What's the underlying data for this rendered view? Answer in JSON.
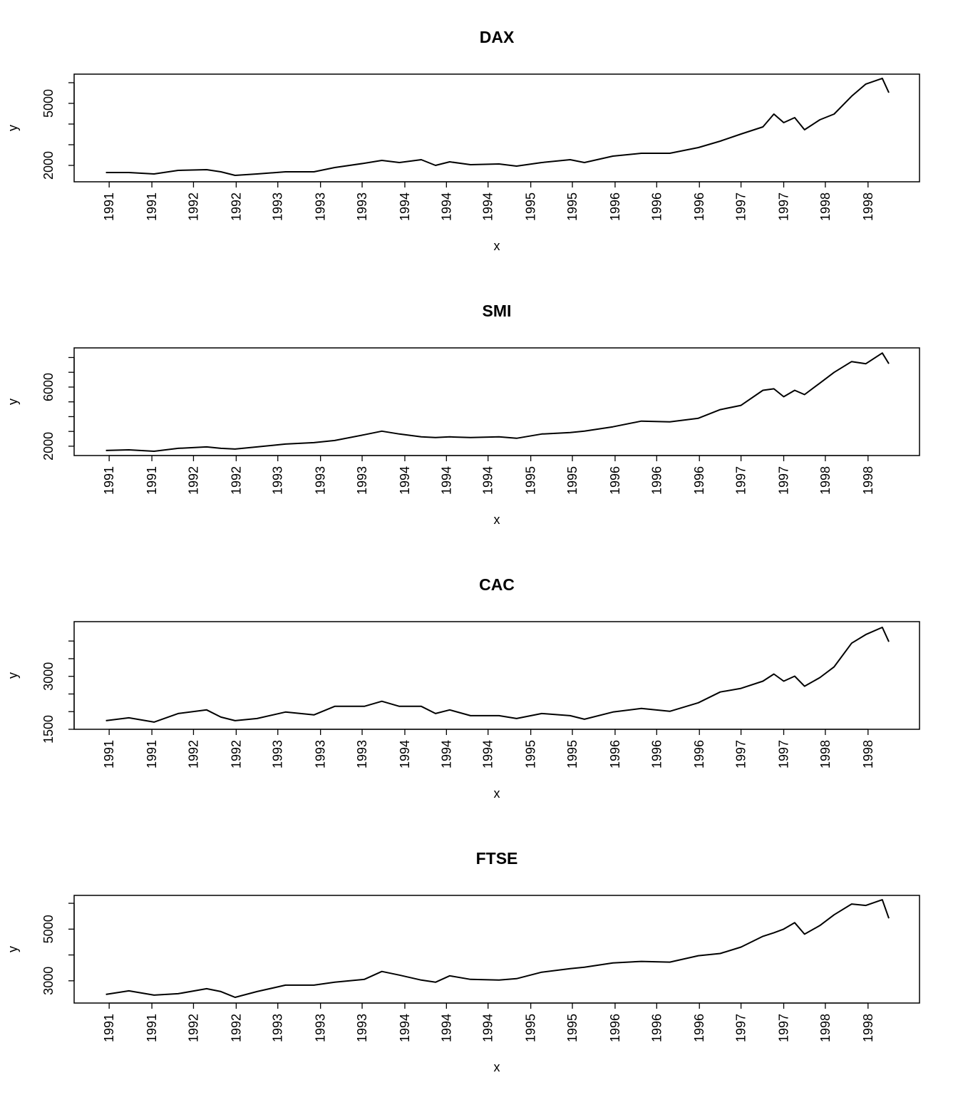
{
  "chart_data": [
    {
      "type": "line",
      "title": "DAX",
      "xlabel": "x",
      "ylabel": "y",
      "color": "#000000",
      "x": [
        1991.5,
        1991.71,
        1991.94,
        1992.16,
        1992.42,
        1992.55,
        1992.68,
        1992.88,
        1993.14,
        1993.4,
        1993.59,
        1993.86,
        1994.02,
        1994.18,
        1994.38,
        1994.51,
        1994.64,
        1994.83,
        1995.09,
        1995.25,
        1995.48,
        1995.74,
        1995.87,
        1996.13,
        1996.39,
        1996.65,
        1996.91,
        1997.11,
        1997.3,
        1997.5,
        1997.6,
        1997.69,
        1997.79,
        1997.88,
        1998.02,
        1998.15,
        1998.31,
        1998.44,
        1998.59,
        1998.65
      ],
      "values": [
        1655,
        1655,
        1586,
        1759,
        1793,
        1690,
        1517,
        1586,
        1690,
        1690,
        1897,
        2103,
        2241,
        2138,
        2276,
        2000,
        2172,
        2035,
        2069,
        1966,
        2138,
        2276,
        2138,
        2448,
        2586,
        2586,
        2862,
        3173,
        3518,
        3863,
        4484,
        4070,
        4312,
        3725,
        4208,
        4484,
        5347,
        5933,
        6209,
        5519
      ],
      "xlim": [
        1991.21,
        1998.93
      ],
      "ylim": [
        1207,
        6414
      ],
      "xticks": [
        {
          "value": 1991.53,
          "label": "1991"
        },
        {
          "value": 1991.92,
          "label": "1991"
        },
        {
          "value": 1992.3,
          "label": "1992"
        },
        {
          "value": 1992.69,
          "label": "1992"
        },
        {
          "value": 1993.07,
          "label": "1993"
        },
        {
          "value": 1993.46,
          "label": "1993"
        },
        {
          "value": 1993.84,
          "label": "1993"
        },
        {
          "value": 1994.23,
          "label": "1994"
        },
        {
          "value": 1994.61,
          "label": "1994"
        },
        {
          "value": 1994.99,
          "label": "1994"
        },
        {
          "value": 1995.38,
          "label": "1995"
        },
        {
          "value": 1995.76,
          "label": "1995"
        },
        {
          "value": 1996.15,
          "label": "1996"
        },
        {
          "value": 1996.53,
          "label": "1996"
        },
        {
          "value": 1996.92,
          "label": "1996"
        },
        {
          "value": 1997.3,
          "label": "1997"
        },
        {
          "value": 1997.69,
          "label": "1997"
        },
        {
          "value": 1998.07,
          "label": "1998"
        },
        {
          "value": 1998.46,
          "label": "1998"
        }
      ],
      "yticks": [
        2000,
        {
          "value": 3000,
          "label": null
        },
        {
          "value": 4000,
          "label": null
        },
        5000,
        {
          "value": 6000,
          "label": null
        }
      ]
    },
    {
      "type": "line",
      "title": "SMI",
      "xlabel": "x",
      "ylabel": "y",
      "color": "#000000",
      "x": [
        1991.5,
        1991.71,
        1991.94,
        1992.16,
        1992.42,
        1992.55,
        1992.68,
        1992.88,
        1993.14,
        1993.4,
        1993.59,
        1993.86,
        1994.02,
        1994.18,
        1994.38,
        1994.51,
        1994.64,
        1994.83,
        1995.09,
        1995.25,
        1995.48,
        1995.74,
        1995.87,
        1996.13,
        1996.39,
        1996.65,
        1996.91,
        1997.11,
        1997.3,
        1997.5,
        1997.6,
        1997.69,
        1997.79,
        1997.88,
        1998.02,
        1998.15,
        1998.31,
        1998.44,
        1998.59,
        1998.65
      ],
      "values": [
        1709,
        1757,
        1660,
        1854,
        1951,
        1854,
        1806,
        1951,
        2146,
        2243,
        2388,
        2776,
        3019,
        2825,
        2631,
        2582,
        2631,
        2582,
        2631,
        2534,
        2825,
        2922,
        3019,
        3310,
        3698,
        3649,
        3892,
        4474,
        4765,
        5783,
        5880,
        5347,
        5783,
        5492,
        6268,
        6996,
        7723,
        7578,
        8305,
        7578
      ],
      "xlim": [
        1991.21,
        1998.93
      ],
      "ylim": [
        1369,
        8650
      ],
      "xticks": [
        {
          "value": 1991.53,
          "label": "1991"
        },
        {
          "value": 1991.92,
          "label": "1991"
        },
        {
          "value": 1992.3,
          "label": "1992"
        },
        {
          "value": 1992.69,
          "label": "1992"
        },
        {
          "value": 1993.07,
          "label": "1993"
        },
        {
          "value": 1993.46,
          "label": "1993"
        },
        {
          "value": 1993.84,
          "label": "1993"
        },
        {
          "value": 1994.23,
          "label": "1994"
        },
        {
          "value": 1994.61,
          "label": "1994"
        },
        {
          "value": 1994.99,
          "label": "1994"
        },
        {
          "value": 1995.38,
          "label": "1995"
        },
        {
          "value": 1995.76,
          "label": "1995"
        },
        {
          "value": 1996.15,
          "label": "1996"
        },
        {
          "value": 1996.53,
          "label": "1996"
        },
        {
          "value": 1996.92,
          "label": "1996"
        },
        {
          "value": 1997.3,
          "label": "1997"
        },
        {
          "value": 1997.69,
          "label": "1997"
        },
        {
          "value": 1998.07,
          "label": "1998"
        },
        {
          "value": 1998.46,
          "label": "1998"
        }
      ],
      "yticks": [
        2000,
        {
          "value": 3000,
          "label": null
        },
        {
          "value": 4000,
          "label": null
        },
        {
          "value": 5000,
          "label": null
        },
        6000,
        {
          "value": 7000,
          "label": null
        },
        {
          "value": 8000,
          "label": null
        }
      ]
    },
    {
      "type": "line",
      "title": "CAC",
      "xlabel": "x",
      "ylabel": "y",
      "color": "#000000",
      "x": [
        1991.5,
        1991.71,
        1991.94,
        1992.16,
        1992.42,
        1992.55,
        1992.68,
        1992.88,
        1993.14,
        1993.4,
        1993.59,
        1993.86,
        1994.02,
        1994.18,
        1994.38,
        1994.51,
        1994.64,
        1994.83,
        1995.09,
        1995.25,
        1995.48,
        1995.74,
        1995.87,
        1996.13,
        1996.39,
        1996.65,
        1996.91,
        1997.11,
        1997.3,
        1997.5,
        1997.6,
        1997.69,
        1997.79,
        1997.88,
        1998.02,
        1998.15,
        1998.31,
        1998.44,
        1998.59,
        1998.65
      ],
      "values": [
        1744,
        1825,
        1703,
        1947,
        2049,
        1846,
        1744,
        1805,
        1988,
        1907,
        2151,
        2151,
        2293,
        2151,
        2151,
        1947,
        2049,
        1886,
        1886,
        1805,
        1947,
        1886,
        1785,
        1988,
        2090,
        2008,
        2252,
        2557,
        2659,
        2862,
        3065,
        2862,
        3004,
        2720,
        2964,
        3269,
        3940,
        4184,
        4387,
        3980
      ],
      "xlim": [
        1991.21,
        1998.93
      ],
      "ylim": [
        1500,
        4549
      ],
      "xticks": [
        {
          "value": 1991.53,
          "label": "1991"
        },
        {
          "value": 1991.92,
          "label": "1991"
        },
        {
          "value": 1992.3,
          "label": "1992"
        },
        {
          "value": 1992.69,
          "label": "1992"
        },
        {
          "value": 1993.07,
          "label": "1993"
        },
        {
          "value": 1993.46,
          "label": "1993"
        },
        {
          "value": 1993.84,
          "label": "1993"
        },
        {
          "value": 1994.23,
          "label": "1994"
        },
        {
          "value": 1994.61,
          "label": "1994"
        },
        {
          "value": 1994.99,
          "label": "1994"
        },
        {
          "value": 1995.38,
          "label": "1995"
        },
        {
          "value": 1995.76,
          "label": "1995"
        },
        {
          "value": 1996.15,
          "label": "1996"
        },
        {
          "value": 1996.53,
          "label": "1996"
        },
        {
          "value": 1996.92,
          "label": "1996"
        },
        {
          "value": 1997.3,
          "label": "1997"
        },
        {
          "value": 1997.69,
          "label": "1997"
        },
        {
          "value": 1998.07,
          "label": "1998"
        },
        {
          "value": 1998.46,
          "label": "1998"
        }
      ],
      "yticks": [
        1500,
        {
          "value": 2000,
          "label": null
        },
        {
          "value": 2500,
          "label": null
        },
        3000,
        {
          "value": 3500,
          "label": null
        },
        {
          "value": 4000,
          "label": null
        }
      ]
    },
    {
      "type": "line",
      "title": "FTSE",
      "xlabel": "x",
      "ylabel": "y",
      "color": "#000000",
      "x": [
        1991.5,
        1991.71,
        1991.94,
        1992.16,
        1992.42,
        1992.55,
        1992.68,
        1992.88,
        1993.14,
        1993.4,
        1993.59,
        1993.86,
        1994.02,
        1994.18,
        1994.38,
        1994.51,
        1994.64,
        1994.83,
        1995.09,
        1995.25,
        1995.48,
        1995.74,
        1995.87,
        1996.13,
        1996.39,
        1996.65,
        1996.91,
        1997.11,
        1997.3,
        1997.5,
        1997.6,
        1997.69,
        1997.79,
        1997.88,
        1998.02,
        1998.15,
        1998.31,
        1998.44,
        1998.59,
        1998.65
      ],
      "values": [
        2472,
        2611,
        2444,
        2500,
        2694,
        2583,
        2361,
        2583,
        2833,
        2833,
        2944,
        3056,
        3361,
        3222,
        3028,
        2944,
        3194,
        3056,
        3028,
        3083,
        3333,
        3472,
        3528,
        3694,
        3750,
        3722,
        3972,
        4056,
        4306,
        4722,
        4861,
        5000,
        5250,
        4806,
        5139,
        5556,
        5972,
        5917,
        6139,
        5417
      ],
      "xlim": [
        1991.21,
        1998.93
      ],
      "ylim": [
        2139,
        6306
      ],
      "xticks": [
        {
          "value": 1991.53,
          "label": "1991"
        },
        {
          "value": 1991.92,
          "label": "1991"
        },
        {
          "value": 1992.3,
          "label": "1992"
        },
        {
          "value": 1992.69,
          "label": "1992"
        },
        {
          "value": 1993.07,
          "label": "1993"
        },
        {
          "value": 1993.46,
          "label": "1993"
        },
        {
          "value": 1993.84,
          "label": "1993"
        },
        {
          "value": 1994.23,
          "label": "1994"
        },
        {
          "value": 1994.61,
          "label": "1994"
        },
        {
          "value": 1994.99,
          "label": "1994"
        },
        {
          "value": 1995.38,
          "label": "1995"
        },
        {
          "value": 1995.76,
          "label": "1995"
        },
        {
          "value": 1996.15,
          "label": "1996"
        },
        {
          "value": 1996.53,
          "label": "1996"
        },
        {
          "value": 1996.92,
          "label": "1996"
        },
        {
          "value": 1997.3,
          "label": "1997"
        },
        {
          "value": 1997.69,
          "label": "1997"
        },
        {
          "value": 1998.07,
          "label": "1998"
        },
        {
          "value": 1998.46,
          "label": "1998"
        }
      ],
      "yticks": [
        3000,
        {
          "value": 4000,
          "label": null
        },
        5000,
        {
          "value": 6000,
          "label": null
        }
      ]
    }
  ]
}
